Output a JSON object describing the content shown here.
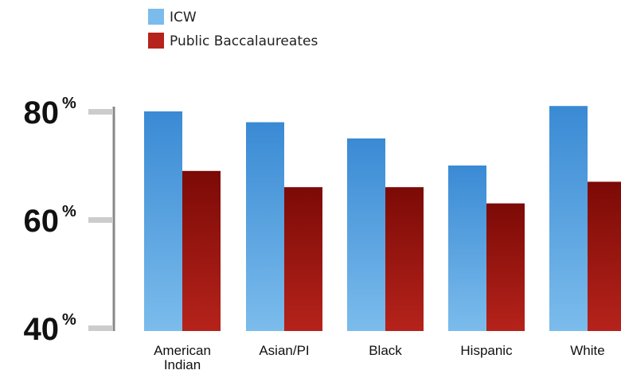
{
  "chart_data": {
    "type": "bar",
    "categories": [
      [
        "American",
        "Indian"
      ],
      [
        "Asian/PI"
      ],
      [
        "Black"
      ],
      [
        "Hispanic"
      ],
      [
        "White"
      ]
    ],
    "series": [
      {
        "name": "ICW",
        "values": [
          80,
          78,
          75,
          70,
          81
        ],
        "color_top": "#3a8ad4",
        "color_bottom": "#7bbcec"
      },
      {
        "name": "Public Baccalaureates",
        "values": [
          69,
          66,
          66,
          63,
          67
        ],
        "color_top": "#7c0a06",
        "color_bottom": "#b5231b"
      }
    ],
    "yticks": [
      {
        "value": 80,
        "number": "80",
        "unit": "%"
      },
      {
        "value": 60,
        "number": "60",
        "unit": "%"
      },
      {
        "value": 40,
        "number": "40",
        "unit": "%"
      }
    ],
    "ylim": [
      40,
      80
    ],
    "legend_position": "top-left",
    "axis_color": "#888888",
    "tick_mark_color": "#cccccc"
  }
}
